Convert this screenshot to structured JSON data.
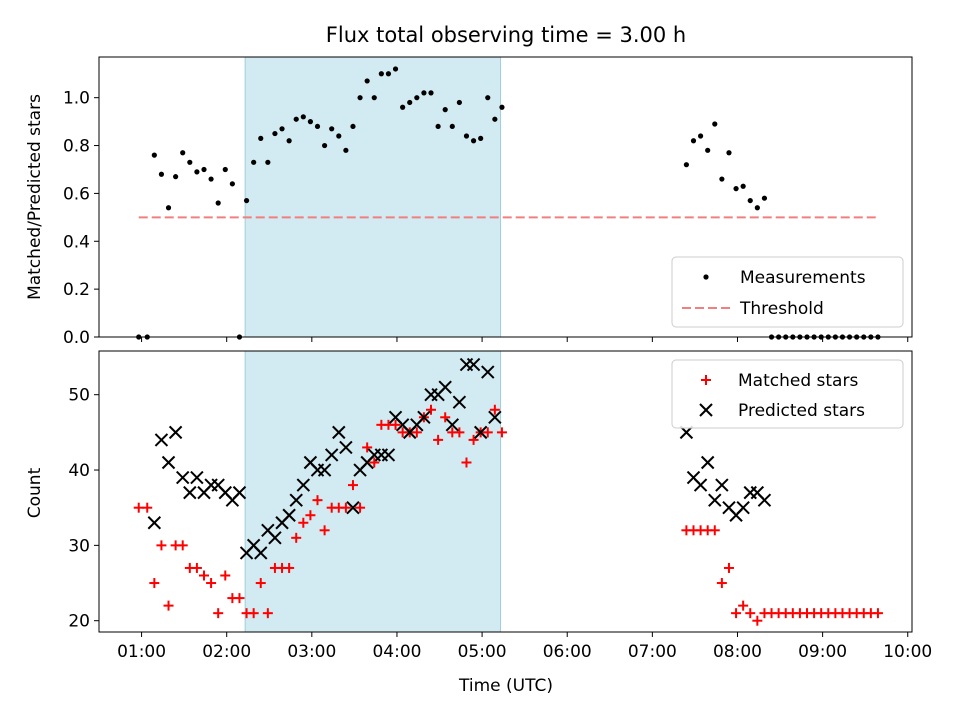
{
  "title": "Flux total observing time = 3.00 h",
  "colors": {
    "measurement": "#000000",
    "threshold": "#f08080",
    "matched": "#ff0000",
    "predicted": "#000000",
    "span_fill": "#add8e6"
  },
  "chart_data": [
    {
      "type": "scatter",
      "panel": "top",
      "title": "Flux total observing time = 3.00 h",
      "xlabel": "",
      "ylabel": "Matched/Predicted stars",
      "xlim": [
        "00:30",
        "10:03"
      ],
      "ylim": [
        0.0,
        1.17
      ],
      "yticks": [
        0.0,
        0.2,
        0.4,
        0.6,
        0.8,
        1.0
      ],
      "ytick_labels": [
        "0.0",
        "0.2",
        "0.4",
        "0.6",
        "0.8",
        "1.0"
      ],
      "highlight_span": [
        "02:13",
        "05:13"
      ],
      "legend_location": "lower right",
      "legend": [
        "Measurements",
        "Threshold"
      ],
      "threshold": {
        "name": "Threshold",
        "y": 0.5,
        "x_start": "00:58",
        "x_end": "09:40",
        "style": "dashed"
      },
      "series": [
        {
          "name": "Measurements",
          "marker": "dot",
          "points": [
            [
              "00:58",
              0.0
            ],
            [
              "01:04",
              0.0
            ],
            [
              "01:09",
              0.76
            ],
            [
              "01:14",
              0.68
            ],
            [
              "01:19",
              0.54
            ],
            [
              "01:24",
              0.67
            ],
            [
              "01:29",
              0.77
            ],
            [
              "01:34",
              0.73
            ],
            [
              "01:39",
              0.69
            ],
            [
              "01:44",
              0.7
            ],
            [
              "01:49",
              0.66
            ],
            [
              "01:54",
              0.56
            ],
            [
              "01:59",
              0.7
            ],
            [
              "02:04",
              0.64
            ],
            [
              "02:09",
              0.0
            ],
            [
              "02:14",
              0.57
            ],
            [
              "02:19",
              0.73
            ],
            [
              "02:24",
              0.83
            ],
            [
              "02:29",
              0.73
            ],
            [
              "02:34",
              0.85
            ],
            [
              "02:39",
              0.87
            ],
            [
              "02:44",
              0.82
            ],
            [
              "02:49",
              0.91
            ],
            [
              "02:54",
              0.92
            ],
            [
              "02:59",
              0.9
            ],
            [
              "03:04",
              0.88
            ],
            [
              "03:09",
              0.8
            ],
            [
              "03:14",
              0.87
            ],
            [
              "03:19",
              0.84
            ],
            [
              "03:24",
              0.78
            ],
            [
              "03:29",
              0.88
            ],
            [
              "03:34",
              1.0
            ],
            [
              "03:39",
              1.07
            ],
            [
              "03:44",
              1.0
            ],
            [
              "03:49",
              1.1
            ],
            [
              "03:54",
              1.1
            ],
            [
              "03:59",
              1.12
            ],
            [
              "04:04",
              0.96
            ],
            [
              "04:09",
              0.98
            ],
            [
              "04:14",
              1.0
            ],
            [
              "04:19",
              1.02
            ],
            [
              "04:24",
              1.02
            ],
            [
              "04:29",
              0.88
            ],
            [
              "04:34",
              0.95
            ],
            [
              "04:39",
              0.88
            ],
            [
              "04:44",
              0.98
            ],
            [
              "04:49",
              0.84
            ],
            [
              "04:54",
              0.82
            ],
            [
              "04:59",
              0.83
            ],
            [
              "05:04",
              1.0
            ],
            [
              "05:09",
              0.91
            ],
            [
              "05:14",
              0.96
            ],
            [
              "07:24",
              0.72
            ],
            [
              "07:29",
              0.82
            ],
            [
              "07:34",
              0.84
            ],
            [
              "07:39",
              0.78
            ],
            [
              "07:44",
              0.89
            ],
            [
              "07:49",
              0.66
            ],
            [
              "07:54",
              0.77
            ],
            [
              "07:59",
              0.62
            ],
            [
              "08:04",
              0.63
            ],
            [
              "08:09",
              0.57
            ],
            [
              "08:14",
              0.54
            ],
            [
              "08:19",
              0.58
            ],
            [
              "08:24",
              0.0
            ],
            [
              "08:29",
              0.0
            ],
            [
              "08:34",
              0.0
            ],
            [
              "08:39",
              0.0
            ],
            [
              "08:44",
              0.0
            ],
            [
              "08:49",
              0.0
            ],
            [
              "08:54",
              0.0
            ],
            [
              "08:59",
              0.0
            ],
            [
              "09:04",
              0.0
            ],
            [
              "09:09",
              0.0
            ],
            [
              "09:14",
              0.0
            ],
            [
              "09:19",
              0.0
            ],
            [
              "09:24",
              0.0
            ],
            [
              "09:29",
              0.0
            ],
            [
              "09:34",
              0.0
            ],
            [
              "09:39",
              0.0
            ]
          ]
        }
      ]
    },
    {
      "type": "scatter",
      "panel": "bottom",
      "xlabel": "Time (UTC)",
      "ylabel": "Count",
      "xlim": [
        "00:30",
        "10:03"
      ],
      "ylim": [
        18.5,
        55.8
      ],
      "yticks": [
        20,
        30,
        40,
        50
      ],
      "ytick_labels": [
        "20",
        "30",
        "40",
        "50"
      ],
      "xticks": [
        "01:00",
        "02:00",
        "03:00",
        "04:00",
        "05:00",
        "06:00",
        "07:00",
        "08:00",
        "09:00",
        "10:00"
      ],
      "xtick_labels": [
        "01:00",
        "02:00",
        "03:00",
        "04:00",
        "05:00",
        "06:00",
        "07:00",
        "08:00",
        "09:00",
        "10:00"
      ],
      "highlight_span": [
        "02:13",
        "05:13"
      ],
      "legend_location": "upper right",
      "legend": [
        "Matched stars",
        "Predicted stars"
      ],
      "series": [
        {
          "name": "Matched stars",
          "marker": "plus",
          "points": [
            [
              "00:58",
              35
            ],
            [
              "01:04",
              35
            ],
            [
              "01:09",
              25
            ],
            [
              "01:14",
              30
            ],
            [
              "01:19",
              22
            ],
            [
              "01:24",
              30
            ],
            [
              "01:29",
              30
            ],
            [
              "01:34",
              27
            ],
            [
              "01:39",
              27
            ],
            [
              "01:44",
              26
            ],
            [
              "01:49",
              25
            ],
            [
              "01:54",
              21
            ],
            [
              "01:59",
              26
            ],
            [
              "02:04",
              23
            ],
            [
              "02:09",
              23
            ],
            [
              "02:14",
              21
            ],
            [
              "02:19",
              21
            ],
            [
              "02:24",
              25
            ],
            [
              "02:29",
              21
            ],
            [
              "02:34",
              27
            ],
            [
              "02:39",
              27
            ],
            [
              "02:44",
              27
            ],
            [
              "02:49",
              31
            ],
            [
              "02:54",
              33
            ],
            [
              "02:59",
              34
            ],
            [
              "03:04",
              36
            ],
            [
              "03:09",
              32
            ],
            [
              "03:14",
              35
            ],
            [
              "03:19",
              35
            ],
            [
              "03:24",
              35
            ],
            [
              "03:29",
              38
            ],
            [
              "03:34",
              35
            ],
            [
              "03:39",
              43
            ],
            [
              "03:44",
              41
            ],
            [
              "03:49",
              46
            ],
            [
              "03:54",
              46
            ],
            [
              "03:59",
              46
            ],
            [
              "04:04",
              45
            ],
            [
              "04:09",
              45
            ],
            [
              "04:14",
              45
            ],
            [
              "04:19",
              47
            ],
            [
              "04:24",
              48
            ],
            [
              "04:29",
              44
            ],
            [
              "04:34",
              47
            ],
            [
              "04:39",
              45
            ],
            [
              "04:44",
              45
            ],
            [
              "04:49",
              41
            ],
            [
              "04:54",
              44
            ],
            [
              "04:59",
              45
            ],
            [
              "05:04",
              45
            ],
            [
              "05:09",
              48
            ],
            [
              "05:14",
              45
            ],
            [
              "07:24",
              32
            ],
            [
              "07:29",
              32
            ],
            [
              "07:34",
              32
            ],
            [
              "07:39",
              32
            ],
            [
              "07:44",
              32
            ],
            [
              "07:49",
              25
            ],
            [
              "07:54",
              27
            ],
            [
              "07:59",
              21
            ],
            [
              "08:04",
              22
            ],
            [
              "08:09",
              21
            ],
            [
              "08:14",
              20
            ],
            [
              "08:19",
              21
            ],
            [
              "08:24",
              21
            ],
            [
              "08:29",
              21
            ],
            [
              "08:34",
              21
            ],
            [
              "08:39",
              21
            ],
            [
              "08:44",
              21
            ],
            [
              "08:49",
              21
            ],
            [
              "08:54",
              21
            ],
            [
              "08:59",
              21
            ],
            [
              "09:04",
              21
            ],
            [
              "09:09",
              21
            ],
            [
              "09:14",
              21
            ],
            [
              "09:19",
              21
            ],
            [
              "09:24",
              21
            ],
            [
              "09:29",
              21
            ],
            [
              "09:34",
              21
            ],
            [
              "09:39",
              21
            ]
          ]
        },
        {
          "name": "Predicted stars",
          "marker": "x",
          "points": [
            [
              "01:09",
              33
            ],
            [
              "01:14",
              44
            ],
            [
              "01:19",
              41
            ],
            [
              "01:24",
              45
            ],
            [
              "01:29",
              39
            ],
            [
              "01:34",
              37
            ],
            [
              "01:39",
              39
            ],
            [
              "01:44",
              37
            ],
            [
              "01:49",
              38
            ],
            [
              "01:54",
              38
            ],
            [
              "01:59",
              37
            ],
            [
              "02:04",
              36
            ],
            [
              "02:09",
              37
            ],
            [
              "02:14",
              29
            ],
            [
              "02:19",
              30
            ],
            [
              "02:24",
              29
            ],
            [
              "02:29",
              32
            ],
            [
              "02:34",
              31
            ],
            [
              "02:39",
              33
            ],
            [
              "02:44",
              34
            ],
            [
              "02:49",
              36
            ],
            [
              "02:54",
              38
            ],
            [
              "02:59",
              41
            ],
            [
              "03:04",
              40
            ],
            [
              "03:09",
              40
            ],
            [
              "03:14",
              42
            ],
            [
              "03:19",
              45
            ],
            [
              "03:24",
              43
            ],
            [
              "03:29",
              35
            ],
            [
              "03:34",
              40
            ],
            [
              "03:39",
              41
            ],
            [
              "03:44",
              42
            ],
            [
              "03:49",
              42
            ],
            [
              "03:54",
              42
            ],
            [
              "03:59",
              47
            ],
            [
              "04:04",
              46
            ],
            [
              "04:09",
              45
            ],
            [
              "04:14",
              46
            ],
            [
              "04:19",
              47
            ],
            [
              "04:24",
              50
            ],
            [
              "04:29",
              50
            ],
            [
              "04:34",
              51
            ],
            [
              "04:39",
              46
            ],
            [
              "04:44",
              49
            ],
            [
              "04:49",
              54
            ],
            [
              "04:54",
              54
            ],
            [
              "04:59",
              45
            ],
            [
              "05:04",
              53
            ],
            [
              "05:09",
              47
            ],
            [
              "07:24",
              45
            ],
            [
              "07:29",
              39
            ],
            [
              "07:34",
              38
            ],
            [
              "07:39",
              41
            ],
            [
              "07:44",
              36
            ],
            [
              "07:49",
              38
            ],
            [
              "07:54",
              35
            ],
            [
              "07:59",
              34
            ],
            [
              "08:04",
              35
            ],
            [
              "08:09",
              37
            ],
            [
              "08:14",
              37
            ],
            [
              "08:19",
              36
            ]
          ]
        }
      ]
    }
  ]
}
